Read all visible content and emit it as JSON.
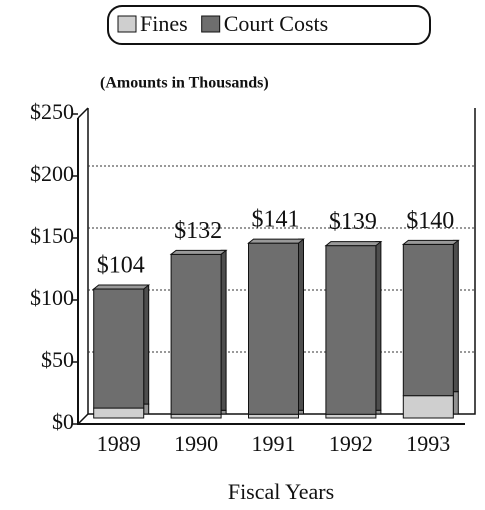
{
  "chart_data": {
    "type": "stacked_bar",
    "annotation": "(Amounts in Thousands)",
    "x_label": "Fiscal Years",
    "categories": [
      "1989",
      "1990",
      "1991",
      "1992",
      "1993"
    ],
    "series": [
      {
        "name": "Fines",
        "color": "#cfcfcf",
        "values": [
          8,
          3,
          3,
          3,
          18
        ]
      },
      {
        "name": "Court Costs",
        "color": "#6e6e6e",
        "values": [
          96,
          129,
          138,
          136,
          122
        ]
      }
    ],
    "totals": [
      104,
      132,
      141,
      139,
      140
    ],
    "total_labels": [
      "$104",
      "$132",
      "$141",
      "$139",
      "$140"
    ],
    "ylim": [
      0,
      250
    ],
    "yticks": [
      {
        "value": 0,
        "label": "$0"
      },
      {
        "value": 50,
        "label": "$50"
      },
      {
        "value": 100,
        "label": "$100"
      },
      {
        "value": 150,
        "label": "$150"
      },
      {
        "value": 200,
        "label": "$200"
      },
      {
        "value": 250,
        "label": "$250"
      }
    ],
    "grid": true,
    "legend": "top"
  }
}
